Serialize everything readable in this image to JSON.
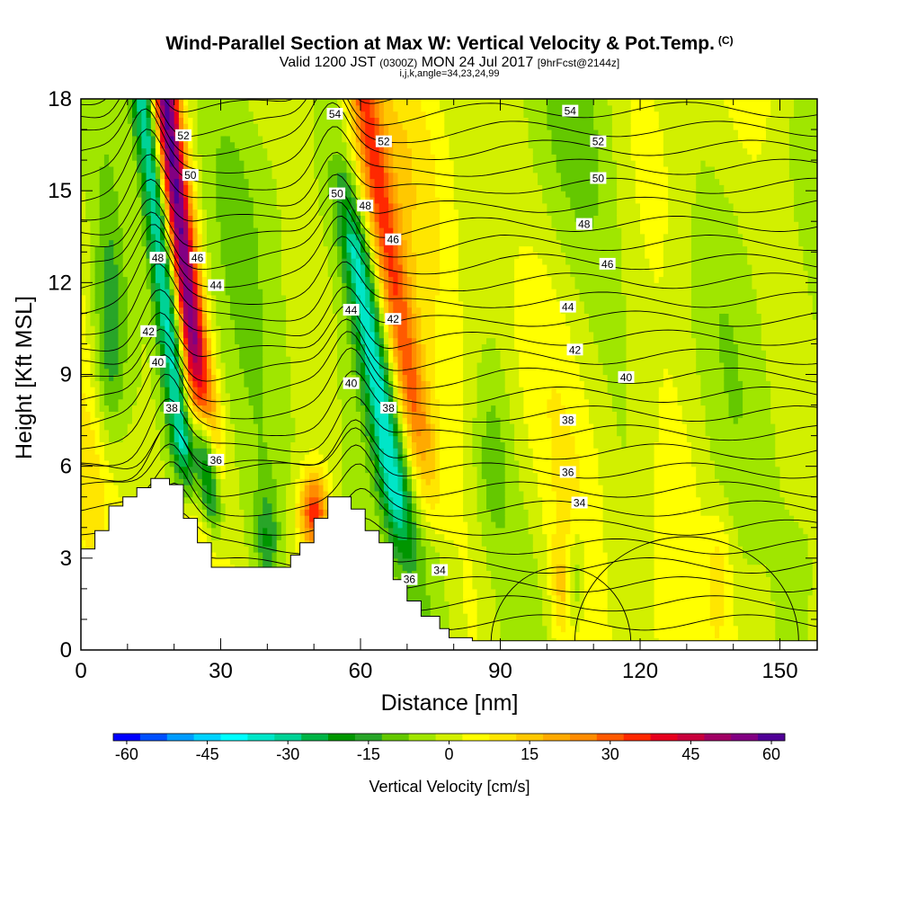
{
  "header": {
    "title": "Wind-Parallel Section at Max W: Vertical Velocity & Pot.Temp.",
    "title_units": "(C)",
    "valid_prefix": "Valid 1200 JST",
    "valid_utc": "(0300Z)",
    "valid_date": "MON 24 Jul 2017",
    "forecast": "[9hrFcst@2144z]",
    "indices": "i,j,k,angle=34,23,24,99"
  },
  "chart_data": {
    "type": "heatmap",
    "xlabel": "Distance [nm]",
    "ylabel": "Height [Kft MSL]",
    "xlim": [
      0,
      158
    ],
    "ylim": [
      0,
      18
    ],
    "x_ticks": [
      0,
      30,
      60,
      90,
      120,
      150
    ],
    "y_ticks": [
      0,
      3,
      6,
      9,
      12,
      15,
      18
    ],
    "terrain": [
      [
        0,
        3.3
      ],
      [
        3,
        3.3
      ],
      [
        3,
        3.9
      ],
      [
        6,
        3.9
      ],
      [
        6,
        4.7
      ],
      [
        9,
        4.7
      ],
      [
        9,
        5.0
      ],
      [
        12,
        5.0
      ],
      [
        12,
        5.3
      ],
      [
        15,
        5.3
      ],
      [
        15,
        5.6
      ],
      [
        19,
        5.6
      ],
      [
        19,
        5.4
      ],
      [
        22,
        5.4
      ],
      [
        22,
        4.3
      ],
      [
        25,
        4.3
      ],
      [
        25,
        3.5
      ],
      [
        28,
        3.5
      ],
      [
        28,
        2.7
      ],
      [
        31,
        2.7
      ],
      [
        31,
        2.7
      ],
      [
        45,
        2.7
      ],
      [
        45,
        3.1
      ],
      [
        47,
        3.1
      ],
      [
        47,
        3.5
      ],
      [
        50,
        3.5
      ],
      [
        50,
        4.3
      ],
      [
        53,
        4.3
      ],
      [
        53,
        5.0
      ],
      [
        58,
        5.0
      ],
      [
        58,
        4.6
      ],
      [
        61,
        4.6
      ],
      [
        61,
        3.9
      ],
      [
        64,
        3.9
      ],
      [
        64,
        3.5
      ],
      [
        67,
        3.5
      ],
      [
        67,
        2.3
      ],
      [
        70,
        2.3
      ],
      [
        70,
        1.6
      ],
      [
        73,
        1.6
      ],
      [
        73,
        1.1
      ],
      [
        77,
        1.1
      ],
      [
        77,
        0.7
      ],
      [
        79,
        0.7
      ],
      [
        79,
        0.4
      ],
      [
        84,
        0.4
      ],
      [
        84,
        0.3
      ],
      [
        158,
        0.3
      ]
    ],
    "series": [
      {
        "name": "Vertical Velocity [cm/s]",
        "description": "filled contours"
      },
      {
        "name": "Pot.Temp. (C)",
        "description": "line contours",
        "levels": [
          34,
          36,
          38,
          40,
          42,
          44,
          46,
          48,
          50,
          52,
          54
        ]
      }
    ],
    "contour_labels": [
      {
        "v": 52,
        "x": 22,
        "y": 16.8
      },
      {
        "v": 50,
        "x": 23.5,
        "y": 15.5
      },
      {
        "v": 48,
        "x": 16.5,
        "y": 12.8
      },
      {
        "v": 46,
        "x": 25,
        "y": 12.8
      },
      {
        "v": 44,
        "x": 29,
        "y": 11.9
      },
      {
        "v": 42,
        "x": 14.5,
        "y": 10.4
      },
      {
        "v": 40,
        "x": 16.5,
        "y": 9.4
      },
      {
        "v": 38,
        "x": 19.5,
        "y": 7.9
      },
      {
        "v": 36,
        "x": 29,
        "y": 6.2
      },
      {
        "v": 54,
        "x": 54.5,
        "y": 17.5
      },
      {
        "v": 52,
        "x": 65,
        "y": 16.6
      },
      {
        "v": 50,
        "x": 55,
        "y": 14.9
      },
      {
        "v": 48,
        "x": 61,
        "y": 14.5
      },
      {
        "v": 46,
        "x": 67,
        "y": 13.4
      },
      {
        "v": 44,
        "x": 58,
        "y": 11.1
      },
      {
        "v": 42,
        "x": 67,
        "y": 10.8
      },
      {
        "v": 40,
        "x": 58,
        "y": 8.7
      },
      {
        "v": 38,
        "x": 66,
        "y": 7.9
      },
      {
        "v": 36,
        "x": 70.5,
        "y": 2.3
      },
      {
        "v": 34,
        "x": 77,
        "y": 2.6
      },
      {
        "v": 54,
        "x": 105,
        "y": 17.6
      },
      {
        "v": 52,
        "x": 111,
        "y": 16.6
      },
      {
        "v": 50,
        "x": 111,
        "y": 15.4
      },
      {
        "v": 48,
        "x": 108,
        "y": 13.9
      },
      {
        "v": 46,
        "x": 113,
        "y": 12.6
      },
      {
        "v": 44,
        "x": 104.5,
        "y": 11.2
      },
      {
        "v": 42,
        "x": 106,
        "y": 9.8
      },
      {
        "v": 40,
        "x": 117,
        "y": 8.9
      },
      {
        "v": 38,
        "x": 104.5,
        "y": 7.5
      },
      {
        "v": 36,
        "x": 104.5,
        "y": 5.8
      },
      {
        "v": 34,
        "x": 107,
        "y": 4.8
      }
    ]
  },
  "colorbar": {
    "label": "Vertical Velocity [cm/s]",
    "tick_labels": [
      "-60",
      "-45",
      "-30",
      "-15",
      "0",
      "15",
      "30",
      "45",
      "60"
    ],
    "colors": [
      "#0000ff",
      "#0050ff",
      "#009cff",
      "#00d2ff",
      "#00ffff",
      "#00e6c8",
      "#00d296",
      "#00b446",
      "#009600",
      "#28a528",
      "#64c800",
      "#a0e600",
      "#d2f000",
      "#ffff00",
      "#ffe600",
      "#ffc800",
      "#ffaa00",
      "#ff8c00",
      "#ff5a00",
      "#ff2800",
      "#e6001e",
      "#c8003c",
      "#a00064",
      "#820082",
      "#500096"
    ]
  }
}
